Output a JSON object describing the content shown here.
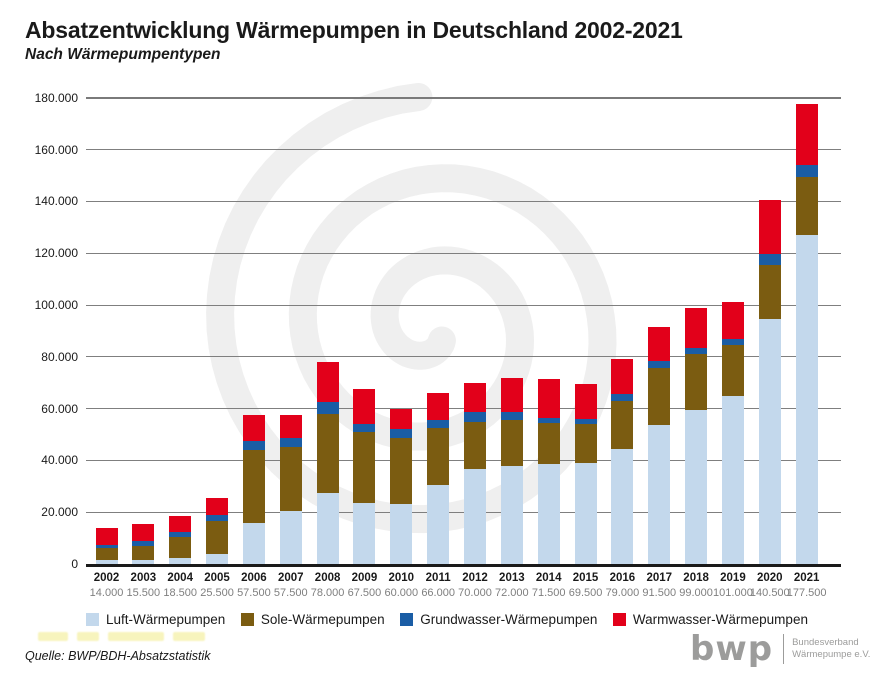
{
  "header": {
    "title": "Absatzentwicklung Wärmepumpen in Deutschland 2002-2021",
    "subtitle": "Nach Wärmepumpentypen"
  },
  "chart_data": {
    "type": "bar",
    "stacked": true,
    "title": "Absatzentwicklung Wärmepumpen in Deutschland 2002-2021",
    "subtitle": "Nach Wärmepumpentypen",
    "categories": [
      "2002",
      "2003",
      "2004",
      "2005",
      "2006",
      "2007",
      "2008",
      "2009",
      "2010",
      "2011",
      "2012",
      "2013",
      "2014",
      "2015",
      "2016",
      "2017",
      "2018",
      "2019",
      "2020",
      "2021"
    ],
    "totals": [
      14000,
      15500,
      18500,
      25500,
      57500,
      57500,
      78000,
      67500,
      60000,
      66000,
      70000,
      72000,
      71500,
      69500,
      79000,
      91500,
      99000,
      101000,
      140500,
      177500
    ],
    "totals_labels": [
      "14.000",
      "15.500",
      "18.500",
      "25.500",
      "57.500",
      "57.500",
      "78.000",
      "67.500",
      "60.000",
      "66.000",
      "70.000",
      "72.000",
      "71.500",
      "69.500",
      "79.000",
      "91.500",
      "99.000",
      "101.000",
      "140.500",
      "177.500"
    ],
    "series": [
      {
        "name": "Luft-Wärmepumpen",
        "color": "#c3d8ec",
        "values": [
          1500,
          1500,
          2500,
          4000,
          16000,
          20500,
          27500,
          23500,
          23000,
          30500,
          36500,
          38000,
          38500,
          39000,
          44500,
          53500,
          59500,
          65000,
          94500,
          127000
        ]
      },
      {
        "name": "Sole-Wärmepumpen",
        "color": "#7b5c11",
        "values": [
          4500,
          5500,
          8000,
          12500,
          28000,
          24500,
          30500,
          27500,
          25500,
          22000,
          18500,
          17500,
          16000,
          15000,
          18500,
          22000,
          21500,
          19500,
          21000,
          22500
        ]
      },
      {
        "name": "Grundwasser-Wärmepumpen",
        "color": "#1a5da5",
        "values": [
          1500,
          2000,
          2000,
          2500,
          3500,
          3500,
          4500,
          3000,
          3500,
          3000,
          3500,
          3000,
          2000,
          2000,
          2500,
          3000,
          2500,
          2500,
          4000,
          4500
        ]
      },
      {
        "name": "Warmwasser-Wärmepumpen",
        "color": "#e2001a",
        "values": [
          6500,
          6500,
          6000,
          6500,
          10000,
          9000,
          15500,
          13500,
          8000,
          10500,
          11500,
          13500,
          15000,
          13500,
          13500,
          13000,
          15500,
          14000,
          21000,
          23500
        ]
      }
    ],
    "ylim": [
      0,
      180000
    ],
    "ytick_step": 20000,
    "ytick_labels": [
      "0",
      "20.000",
      "40.000",
      "60.000",
      "80.000",
      "100.000",
      "120.000",
      "140.000",
      "160.000",
      "180.000"
    ],
    "grid": true,
    "legend_position": "bottom",
    "note": "series values estimated from bar segment heights; totals printed under x-axis"
  },
  "footer": {
    "source": "Quelle: BWP/BDH-Absatzstatistik",
    "faint_note_legible": false,
    "faint_note_color": "#f7f3b6",
    "logo_acronym": "bwp",
    "logo_line1": "Bundesverband",
    "logo_line2": "Wärmepumpe e.V."
  },
  "style_colors": {
    "gridline": "#7f7f7f",
    "axis": "#1a1a1a",
    "totals_text": "#7f7f7f",
    "watermark_spiral": "#efefef",
    "logo_gray": "#9c9c9b"
  }
}
